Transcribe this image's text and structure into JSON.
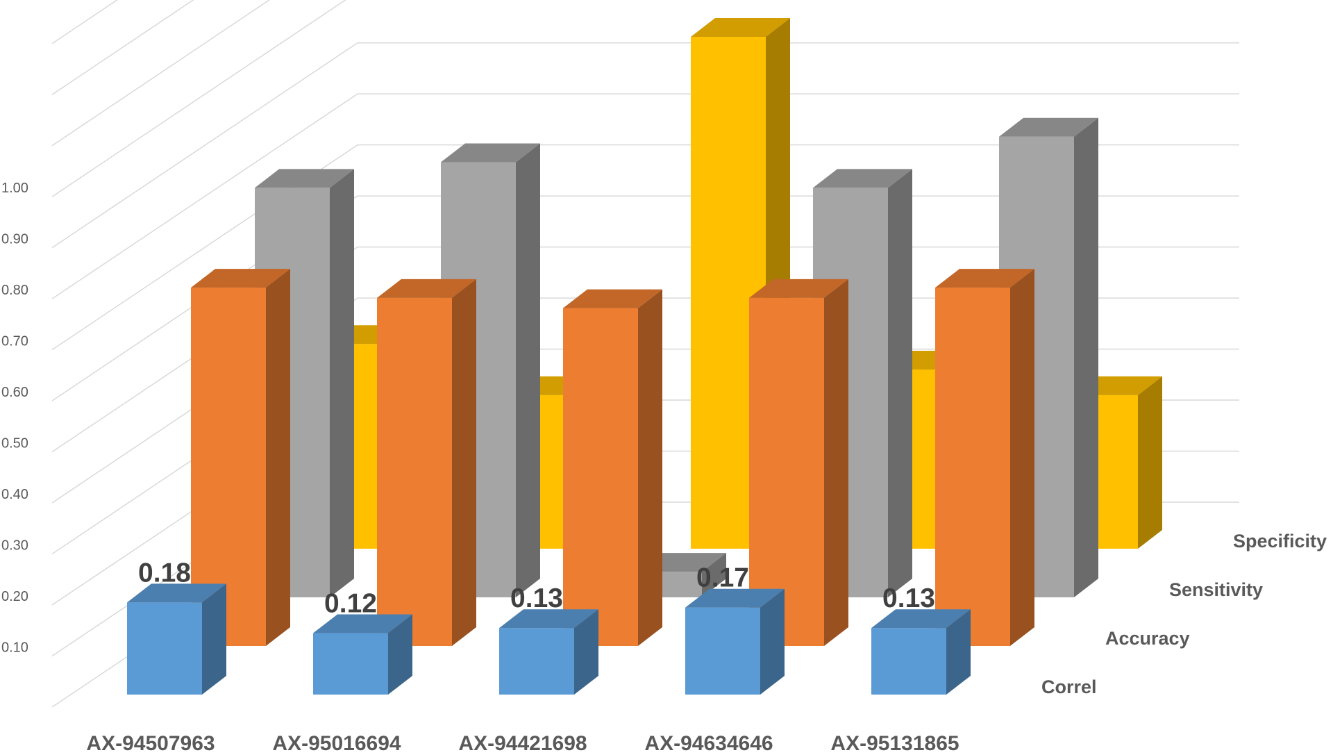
{
  "chart_data": {
    "type": "bar",
    "variant": "3d-column",
    "categories": [
      "AX-94507963",
      "AX-95016694",
      "AX-94421698",
      "AX-94634646",
      "AX-95131865"
    ],
    "series": [
      {
        "name": "Correl",
        "values": [
          0.18,
          0.12,
          0.13,
          0.17,
          0.13
        ],
        "color": "#5B9BD5",
        "data_labels": [
          "0.18",
          "0.12",
          "0.13",
          "0.17",
          "0.13"
        ]
      },
      {
        "name": "Accuracy",
        "values": [
          0.7,
          0.68,
          0.66,
          0.68,
          0.7
        ],
        "color": "#ED7D31"
      },
      {
        "name": "Sensitivity",
        "values": [
          0.8,
          0.85,
          0.05,
          0.8,
          0.9
        ],
        "color": "#A5A5A5"
      },
      {
        "name": "Specificity",
        "values": [
          0.4,
          0.3,
          1.0,
          0.35,
          0.3
        ],
        "color": "#FFC000"
      }
    ],
    "y_ticks": [
      "0.10",
      "0.20",
      "0.30",
      "0.40",
      "0.50",
      "0.60",
      "0.70",
      "0.80",
      "0.90",
      "1.00"
    ],
    "ylim": [
      0,
      1.0
    ],
    "grid": true,
    "legend": "none"
  }
}
